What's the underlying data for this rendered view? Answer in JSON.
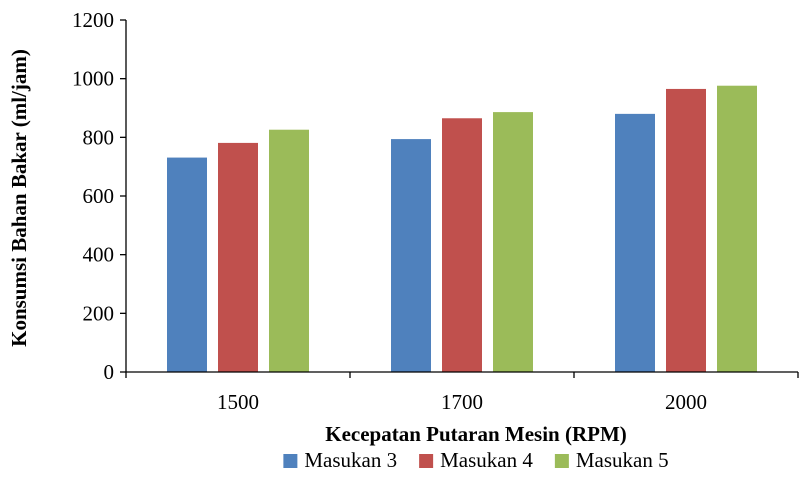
{
  "chart_data": {
    "type": "bar",
    "title": "",
    "xlabel": "Kecepatan Putaran Mesin (RPM)",
    "ylabel": "Konsumsi Bahan Bakar (ml/jam)",
    "categories": [
      "1500",
      "1700",
      "2000"
    ],
    "series": [
      {
        "name": "Masukan 3",
        "color": "#4F81BD",
        "values": [
          731,
          794,
          880
        ]
      },
      {
        "name": "Masukan 4",
        "color": "#C0504D",
        "values": [
          781,
          865,
          965
        ]
      },
      {
        "name": "Masukan 5",
        "color": "#9BBB59",
        "values": [
          826,
          886,
          976
        ]
      }
    ],
    "ylim": [
      0,
      1200
    ],
    "yticks": [
      0,
      200,
      400,
      600,
      800,
      1000,
      1200
    ],
    "grid": false,
    "legend_position": "bottom"
  }
}
